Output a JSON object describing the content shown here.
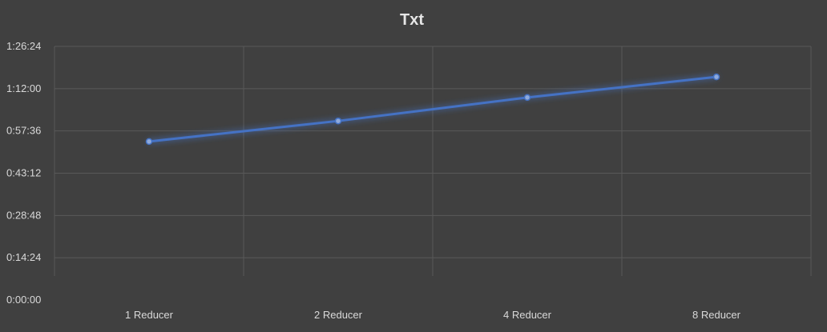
{
  "chart_data": {
    "type": "line",
    "title": "Txt",
    "xlabel": "",
    "ylabel": "",
    "categories": [
      "1 Reducer",
      "2 Reducer",
      "4 Reducer",
      "8 Reducer"
    ],
    "series": [
      {
        "values": [
          "0:54:00",
          "1:01:00",
          "1:09:00",
          "1:16:00"
        ],
        "color": "#4472c4"
      }
    ],
    "y_ticks": [
      "0:00:00",
      "0:14:24",
      "0:28:48",
      "0:43:12",
      "0:57:36",
      "1:12:00",
      "1:26:24"
    ],
    "ylim": [
      "0:00:00",
      "1:26:24"
    ],
    "grid": true,
    "legend": "none",
    "colors": {
      "background": "#404040",
      "gridline": "#595959",
      "text": "#d9d9d9",
      "title": "#e6e6e6",
      "line": "#4472c4",
      "marker": "#8faadc"
    }
  }
}
